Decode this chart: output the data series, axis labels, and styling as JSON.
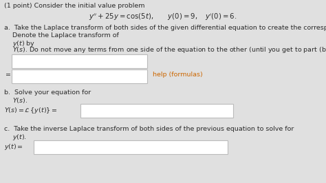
{
  "background_color": "#e0e0e0",
  "title": "(1 point) Consider the initial value problem",
  "equation": "$y'' + 25y = \\cos(5t), \\qquad y(0) = 9, \\quad y'(0) = 6.$",
  "a_text1": "a.  Take the Laplace transform of both sides of the given differential equation to create the corresponding algebraic equation.",
  "a_text2": "    Denote the Laplace transform of",
  "a_text3": "    $y(t)$ by",
  "a_text4": "    $Y(s)$. Do not move any terms from one side of the equation to the other (until you get to part (b) below).",
  "help_text": "help (formulas)",
  "help_color": "#cc6600",
  "equals_sign": "=",
  "b_text1": "b.  Solve your equation for",
  "b_text2": "    $Y(s)$.",
  "b_eq": "$Y(s) = \\mathcal{L}\\,\\{y(t)\\} =$",
  "c_text1": "c.  Take the inverse Laplace transform of both sides of the previous equation to solve for",
  "c_text2": "    $y(t)$.",
  "c_eq": "$y(t) =$",
  "box_face": "#ffffff",
  "box_edge": "#bbbbbb",
  "text_color": "#2a2a2a",
  "fs": 6.8
}
